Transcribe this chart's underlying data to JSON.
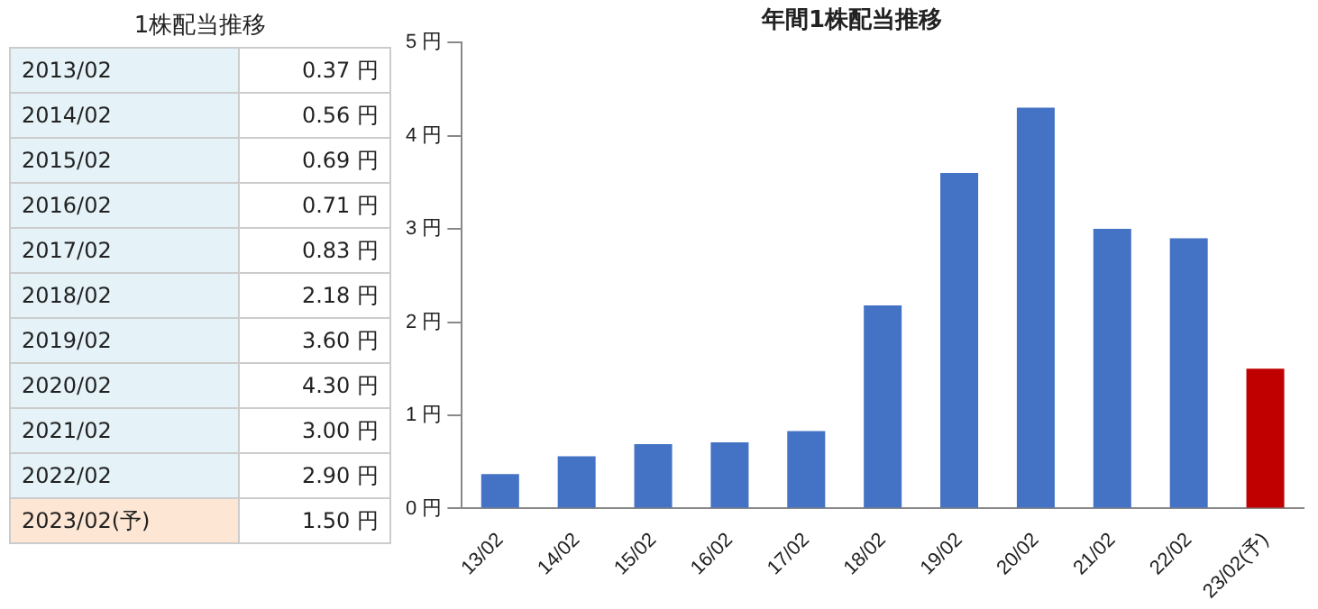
{
  "chart_data": [
    {
      "type": "other",
      "title": "1株配当推移",
      "categories": [
        "2013/02",
        "2014/02",
        "2015/02",
        "2016/02",
        "2017/02",
        "2018/02",
        "2019/02",
        "2020/02",
        "2021/02",
        "2022/02",
        "2023/02(予)"
      ],
      "value_labels": [
        "0.37 円",
        "0.56 円",
        "0.69 円",
        "0.71 円",
        "0.83 円",
        "2.18 円",
        "3.60 円",
        "4.30 円",
        "3.00 円",
        "2.90 円",
        "1.50 円"
      ]
    },
    {
      "type": "bar",
      "title": "年間1株配当推移",
      "categories": [
        "13/02",
        "14/02",
        "15/02",
        "16/02",
        "17/02",
        "18/02",
        "19/02",
        "20/02",
        "21/02",
        "22/02",
        "23/02(予)"
      ],
      "values": [
        0.37,
        0.56,
        0.69,
        0.71,
        0.83,
        2.18,
        3.6,
        4.3,
        3.0,
        2.9,
        1.5
      ],
      "colors": [
        "#4472c4",
        "#4472c4",
        "#4472c4",
        "#4472c4",
        "#4472c4",
        "#4472c4",
        "#4472c4",
        "#4472c4",
        "#4472c4",
        "#4472c4",
        "#c00000"
      ],
      "ylim": [
        0,
        5
      ],
      "yticks": [
        {
          "value": 0,
          "label": "0 円"
        },
        {
          "value": 1,
          "label": "1 円"
        },
        {
          "value": 2,
          "label": "2 円"
        },
        {
          "value": 3,
          "label": "3 円"
        },
        {
          "value": 4,
          "label": "4 円"
        },
        {
          "value": 5,
          "label": "5 円"
        }
      ],
      "grid": false,
      "legend": false
    }
  ]
}
